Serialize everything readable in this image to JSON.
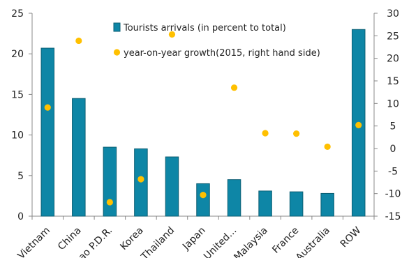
{
  "chart_data": {
    "type": "bar",
    "categories": [
      "Vietnam",
      "China",
      "Lao P.D.R.",
      "Korea",
      "Thailand",
      "Japan",
      "United...",
      "Malaysia",
      "France",
      "Australia",
      "ROW"
    ],
    "series": [
      {
        "name": "Tourists arrivals (in percent to total)",
        "type": "bar",
        "axis": "left",
        "values": [
          20.7,
          14.5,
          8.5,
          8.3,
          7.3,
          4.0,
          4.5,
          3.1,
          3.0,
          2.8,
          23.0
        ]
      },
      {
        "name": "year-on-year growth(2015, right hand side)",
        "type": "scatter",
        "axis": "right",
        "values": [
          9.1,
          23.9,
          -11.9,
          -6.8,
          25.3,
          -10.3,
          13.5,
          3.4,
          3.3,
          0.4,
          5.2
        ]
      }
    ],
    "y_left": {
      "lim": [
        0,
        25
      ],
      "ticks": [
        "0",
        "5",
        "10",
        "15",
        "20",
        "25"
      ]
    },
    "y_right": {
      "lim": [
        -15,
        30
      ],
      "ticks": [
        "-15",
        "-10",
        "-5",
        "0",
        "5",
        "10",
        "15",
        "20",
        "25",
        "30"
      ]
    },
    "title": "",
    "xlabel": "",
    "ylabel": "",
    "grid": false,
    "legend_position": "top-center",
    "colors": {
      "bar": "#0E86A6",
      "bar_edge": "#0B5E73",
      "dot": "#FFC000",
      "axis": "#888888"
    }
  }
}
